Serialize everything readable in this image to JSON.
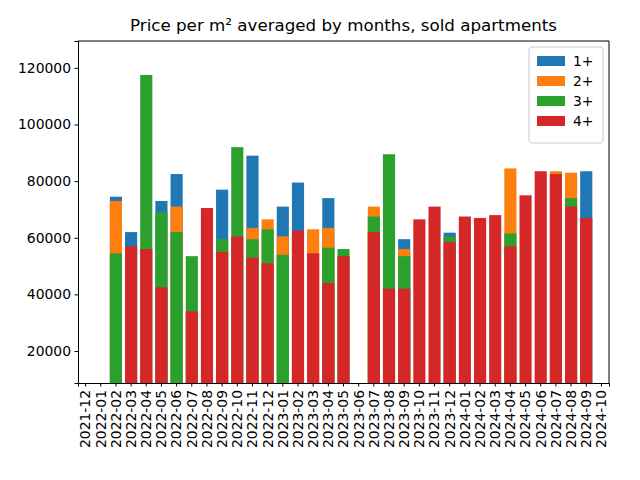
{
  "chart_data": {
    "type": "bar",
    "title": "Price per m² averaged by months, sold apartments",
    "categories": [
      "2021-12",
      "2022-01",
      "2022-02",
      "2022-03",
      "2022-04",
      "2022-05",
      "2022-06",
      "2022-07",
      "2022-08",
      "2022-09",
      "2022-10",
      "2022-11",
      "2022-12",
      "2023-01",
      "2023-02",
      "2023-03",
      "2023-04",
      "2023-05",
      "2023-06",
      "2023-07",
      "2023-08",
      "2023-09",
      "2023-10",
      "2023-11",
      "2023-12",
      "2024-01",
      "2024-02",
      "2024-03",
      "2024-04",
      "2024-05",
      "2024-06",
      "2024-07",
      "2024-08",
      "2024-09",
      "2024-10"
    ],
    "series": [
      {
        "name": "1+",
        "color": "#1f77b4",
        "values": [
          null,
          null,
          74500,
          62000,
          null,
          73000,
          82500,
          null,
          null,
          77000,
          null,
          89000,
          null,
          71000,
          79500,
          null,
          74000,
          null,
          null,
          null,
          null,
          59500,
          null,
          null,
          61800,
          null,
          null,
          null,
          null,
          null,
          null,
          null,
          null,
          83500,
          null
        ]
      },
      {
        "name": "2+",
        "color": "#ff7f0e",
        "values": [
          null,
          null,
          73000,
          null,
          null,
          null,
          71000,
          null,
          null,
          null,
          null,
          63500,
          66500,
          60500,
          null,
          63000,
          63500,
          null,
          null,
          71000,
          null,
          56000,
          null,
          null,
          null,
          null,
          null,
          null,
          84500,
          null,
          null,
          83500,
          83000,
          null,
          null
        ]
      },
      {
        "name": "3+",
        "color": "#2ca02c",
        "values": [
          null,
          null,
          54500,
          null,
          117500,
          69000,
          62000,
          53500,
          null,
          59500,
          92000,
          59500,
          63000,
          54000,
          null,
          null,
          56500,
          56000,
          null,
          67500,
          89500,
          53500,
          null,
          null,
          60500,
          null,
          null,
          null,
          61500,
          null,
          null,
          null,
          74000,
          null,
          null
        ]
      },
      {
        "name": "4+",
        "color": "#d62728",
        "values": [
          null,
          null,
          null,
          57000,
          56000,
          42500,
          null,
          34000,
          70500,
          55000,
          60500,
          53000,
          51000,
          null,
          62500,
          54500,
          44000,
          53500,
          null,
          62000,
          42000,
          42000,
          66500,
          71000,
          58500,
          67500,
          67000,
          68000,
          57000,
          75000,
          83500,
          82500,
          71000,
          67000,
          null
        ]
      }
    ],
    "ylim": [
      8700,
      129500
    ],
    "yticks": [
      20000,
      40000,
      60000,
      80000,
      100000,
      120000
    ],
    "legend": "upper right",
    "stacked": false,
    "grid": false
  }
}
